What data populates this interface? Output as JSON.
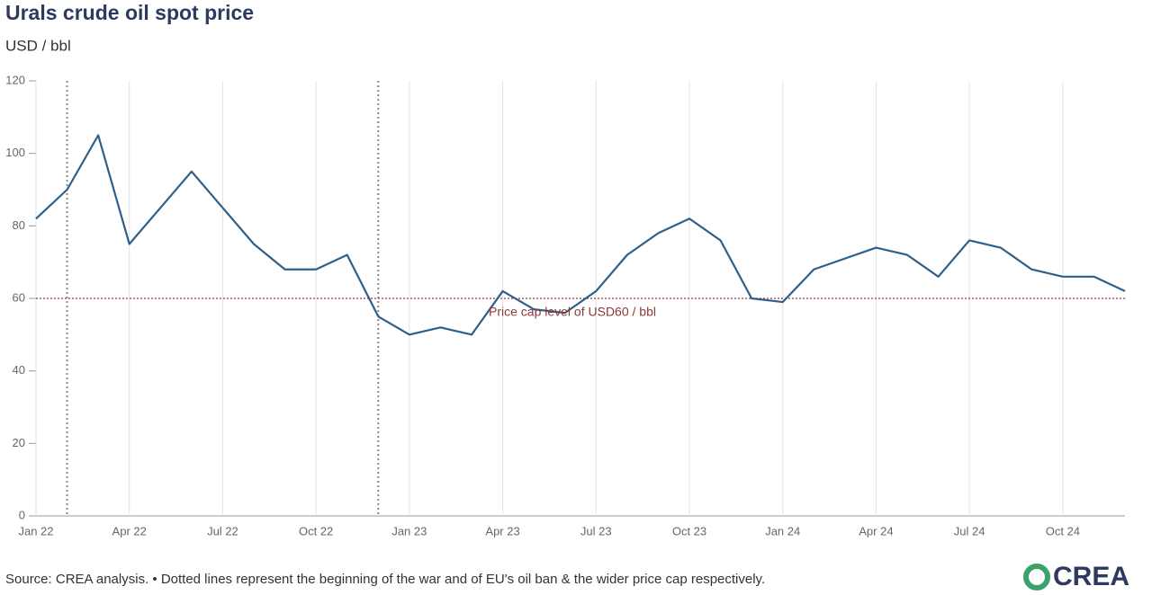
{
  "chart_data": {
    "type": "line",
    "title": "Urals crude oil spot price",
    "subtitle": "USD / bbl",
    "source": "Source: CREA analysis. • Dotted lines represent the beginning of the war and of EU's oil ban & the wider price cap respectively.",
    "brand": "CREA",
    "x": [
      "2022-01",
      "2022-02",
      "2022-03",
      "2022-04",
      "2022-05",
      "2022-06",
      "2022-07",
      "2022-08",
      "2022-09",
      "2022-10",
      "2022-11",
      "2022-12",
      "2023-01",
      "2023-02",
      "2023-03",
      "2023-04",
      "2023-05",
      "2023-06",
      "2023-07",
      "2023-08",
      "2023-09",
      "2023-10",
      "2023-11",
      "2023-12",
      "2024-01",
      "2024-02",
      "2024-03",
      "2024-04",
      "2024-05",
      "2024-06",
      "2024-07",
      "2024-08",
      "2024-09",
      "2024-10",
      "2024-11",
      "2024-12"
    ],
    "series": [
      {
        "name": "Urals",
        "color": "#2e5f8a",
        "values": [
          82,
          90,
          105,
          75,
          85,
          95,
          85,
          75,
          68,
          68,
          72,
          55,
          50,
          52,
          50,
          62,
          57,
          56,
          62,
          72,
          78,
          82,
          76,
          60,
          59,
          68,
          71,
          74,
          72,
          66,
          76,
          74,
          68,
          66,
          66,
          62
        ]
      }
    ],
    "xlim": [
      "2022-01",
      "2024-12"
    ],
    "xticks": [
      {
        "value": "2022-01",
        "label": "Jan 22"
      },
      {
        "value": "2022-04",
        "label": "Apr 22"
      },
      {
        "value": "2022-07",
        "label": "Jul 22"
      },
      {
        "value": "2022-10",
        "label": "Oct 22"
      },
      {
        "value": "2023-01",
        "label": "Jan 23"
      },
      {
        "value": "2023-04",
        "label": "Apr 23"
      },
      {
        "value": "2023-07",
        "label": "Jul 23"
      },
      {
        "value": "2023-10",
        "label": "Oct 23"
      },
      {
        "value": "2024-01",
        "label": "Jan 24"
      },
      {
        "value": "2024-04",
        "label": "Apr 24"
      },
      {
        "value": "2024-07",
        "label": "Jul 24"
      },
      {
        "value": "2024-10",
        "label": "Oct 24"
      }
    ],
    "ylim": [
      0,
      120
    ],
    "yticks": [
      0,
      20,
      40,
      60,
      80,
      100,
      120
    ],
    "grid": true,
    "event_lines": [
      "2022-02",
      "2022-12"
    ],
    "reference_line": {
      "value": 60,
      "label": "Price cap level of USD60 / bbl",
      "color": "#8b3a3a"
    }
  }
}
